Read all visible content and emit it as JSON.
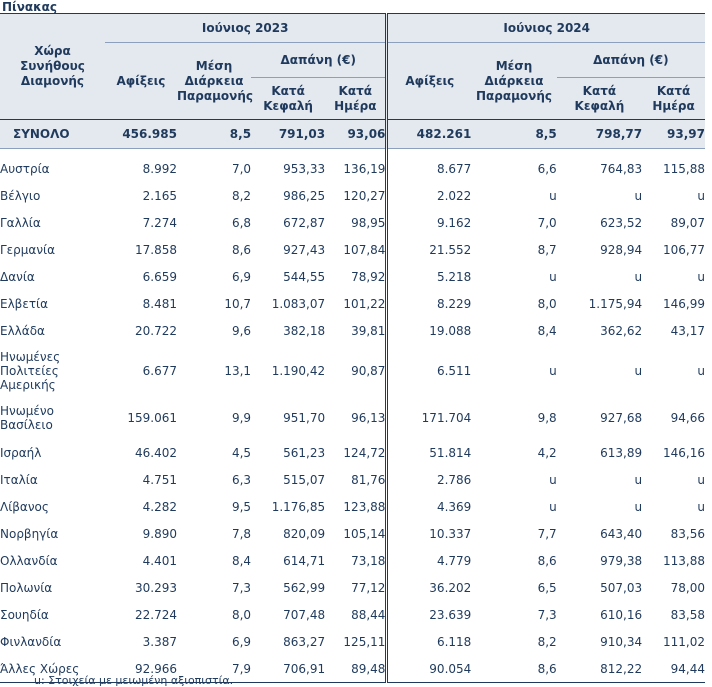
{
  "title": "Πίνακας",
  "headers": {
    "country": "Χώρα Συνήθους Διαμονής",
    "period_2023": "Ιούνιος 2023",
    "period_2024": "Ιούνιος 2024",
    "arrivals": "Αφίξεις",
    "avg_stay": "Μέση Διάρκεια Παραμονής",
    "spending": "Δαπάνη (€)",
    "per_capita": "Κατά Κεφαλή",
    "per_day": "Κατά Ημέρα"
  },
  "total": [
    "ΣΥΝΟΛΟ",
    "456.985",
    "8,5",
    "791,03",
    "93,06",
    "482.261",
    "8,5",
    "798,77",
    "93,97"
  ],
  "rows": [
    [
      "Αυστρία",
      "8.992",
      "7,0",
      "953,33",
      "136,19",
      "8.677",
      "6,6",
      "764,83",
      "115,88"
    ],
    [
      "Βέλγιο",
      "2.165",
      "8,2",
      "986,25",
      "120,27",
      "2.022",
      "u",
      "u",
      "u"
    ],
    [
      "Γαλλία",
      "7.274",
      "6,8",
      "672,87",
      "98,95",
      "9.162",
      "7,0",
      "623,52",
      "89,07"
    ],
    [
      "Γερμανία",
      "17.858",
      "8,6",
      "927,43",
      "107,84",
      "21.552",
      "8,7",
      "928,94",
      "106,77"
    ],
    [
      "Δανία",
      "6.659",
      "6,9",
      "544,55",
      "78,92",
      "5.218",
      "u",
      "u",
      "u"
    ],
    [
      "Ελβετία",
      "8.481",
      "10,7",
      "1.083,07",
      "101,22",
      "8.229",
      "8,0",
      "1.175,94",
      "146,99"
    ],
    [
      "Ελλάδα",
      "20.722",
      "9,6",
      "382,18",
      "39,81",
      "19.088",
      "8,4",
      "362,62",
      "43,17"
    ],
    [
      "Ηνωμένες Πολιτείες Αμερικής",
      "6.677",
      "13,1",
      "1.190,42",
      "90,87",
      "6.511",
      "u",
      "u",
      "u"
    ],
    [
      "Ηνωμένο Βασίλειο",
      "159.061",
      "9,9",
      "951,70",
      "96,13",
      "171.704",
      "9,8",
      "927,68",
      "94,66"
    ],
    [
      "Ισραήλ",
      "46.402",
      "4,5",
      "561,23",
      "124,72",
      "51.814",
      "4,2",
      "613,89",
      "146,16"
    ],
    [
      "Ιταλία",
      "4.751",
      "6,3",
      "515,07",
      "81,76",
      "2.786",
      "u",
      "u",
      "u"
    ],
    [
      "Λίβανος",
      "4.282",
      "9,5",
      "1.176,85",
      "123,88",
      "4.369",
      "u",
      "u",
      "u"
    ],
    [
      "Νορβηγία",
      "9.890",
      "7,8",
      "820,09",
      "105,14",
      "10.337",
      "7,7",
      "643,40",
      "83,56"
    ],
    [
      "Ολλανδία",
      "4.401",
      "8,4",
      "614,71",
      "73,18",
      "4.779",
      "8,6",
      "979,38",
      "113,88"
    ],
    [
      "Πολωνία",
      "30.293",
      "7,3",
      "562,99",
      "77,12",
      "36.202",
      "6,5",
      "507,03",
      "78,00"
    ],
    [
      "Σουηδία",
      "22.724",
      "8,0",
      "707,48",
      "88,44",
      "23.639",
      "7,3",
      "610,16",
      "83,58"
    ],
    [
      "Φινλανδία",
      "3.387",
      "6,9",
      "863,27",
      "125,11",
      "6.118",
      "8,2",
      "910,34",
      "111,02"
    ],
    [
      "Άλλες Χώρες",
      "92.966",
      "7,9",
      "706,91",
      "89,48",
      "90.054",
      "8,6",
      "812,22",
      "94,44"
    ]
  ],
  "footnote": "u:  Στοιχεία με μειωμένη αξιοπιστία."
}
